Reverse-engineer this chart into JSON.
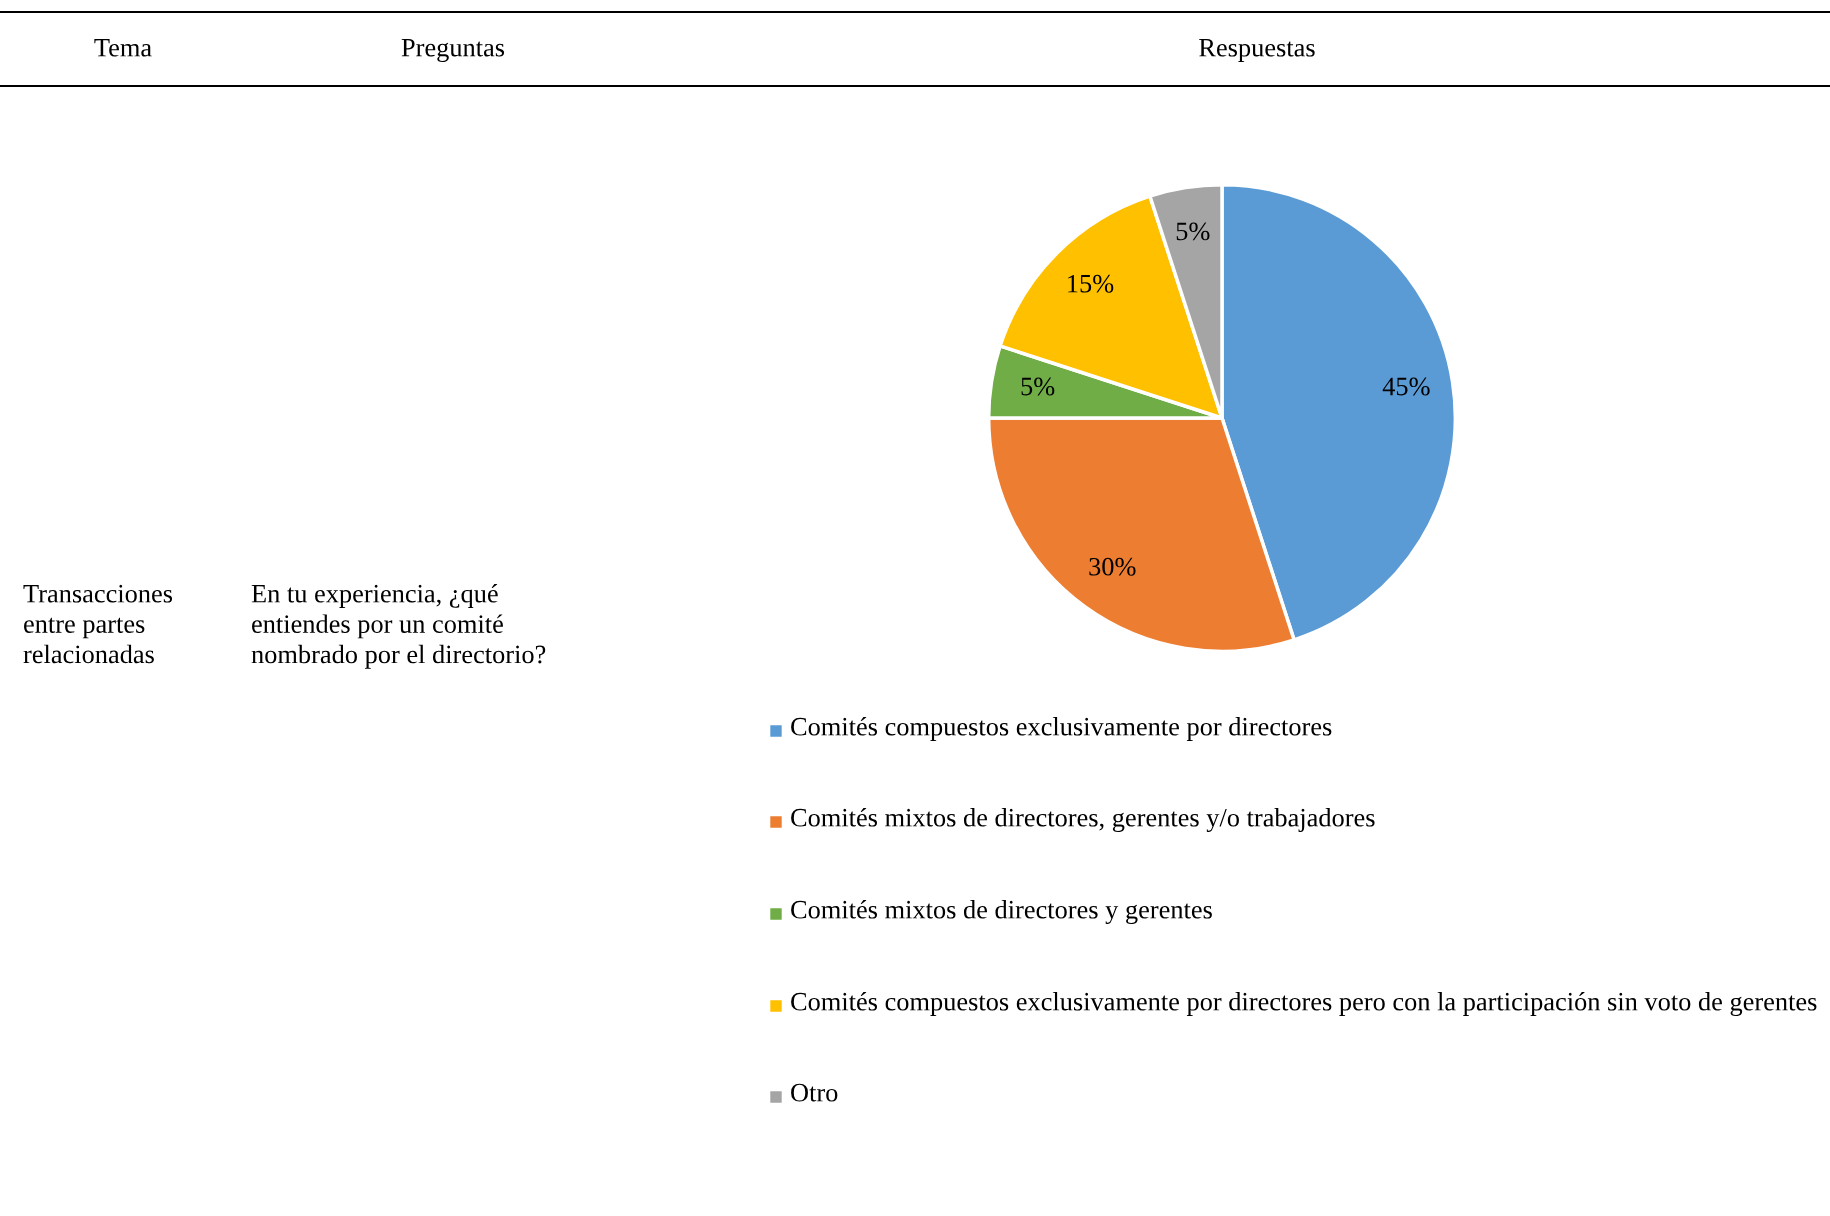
{
  "chart_data": {
    "type": "pie",
    "categories": [
      "Comités compuestos exclusivamente por directores",
      "Comités mixtos de directores, gerentes y/o trabajadores",
      "Comités mixtos de directores y gerentes",
      "Comités compuestos exclusivamente por directores pero con la participación sin voto de gerentes",
      "Otro"
    ],
    "values": [
      45,
      30,
      5,
      15,
      5
    ],
    "colors": [
      "#5b9bd5",
      "#ed7d31",
      "#70ad47",
      "#ffc000",
      "#a5a5a5"
    ],
    "value_labels": [
      "45%",
      "30%",
      "5%",
      "15%",
      "5%"
    ],
    "legend": "bottom",
    "annotations": [
      "Tema",
      "Preguntas",
      "Respuestas",
      "Transacciones\nentre partes\nrelacionadas",
      "En tu experiencia, ¿qué\nentiendes por un comité\nnombrado por el directorio?"
    ]
  }
}
